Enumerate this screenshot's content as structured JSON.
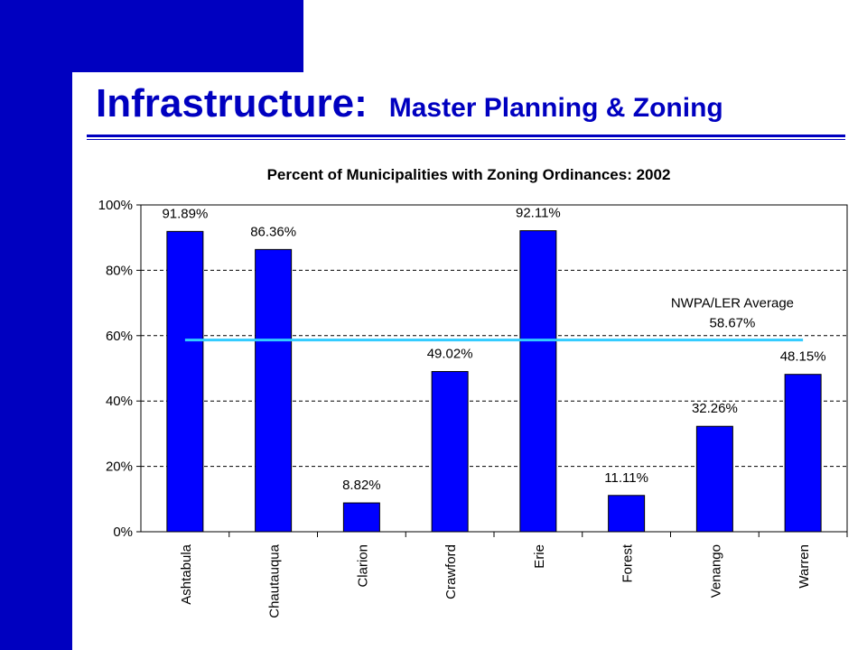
{
  "slide": {
    "title": "Infrastructure:",
    "subtitle": "Master Planning & Zoning",
    "brand_color": "#0000c0"
  },
  "chart_data": {
    "type": "bar",
    "title": "Percent of Municipalities with Zoning Ordinances: 2002",
    "categories": [
      "Ashtabula",
      "Chautauqua",
      "Clarion",
      "Crawford",
      "Erie",
      "Forest",
      "Venango",
      "Warren"
    ],
    "values": [
      91.89,
      86.36,
      8.82,
      49.02,
      92.11,
      11.11,
      32.26,
      48.15
    ],
    "value_labels": [
      "91.89%",
      "86.36%",
      "8.82%",
      "49.02%",
      "92.11%",
      "11.11%",
      "32.26%",
      "48.15%"
    ],
    "ylim": [
      0,
      100
    ],
    "yticks": [
      0,
      20,
      40,
      60,
      80,
      100
    ],
    "ytick_labels": [
      "0%",
      "20%",
      "40%",
      "60%",
      "80%",
      "100%"
    ],
    "grid": true,
    "bar_color": "#0000ff",
    "reference_line": {
      "label": "NWPA/LER Average",
      "value": 58.67,
      "value_label": "58.67%",
      "color": "#33ccff"
    }
  }
}
